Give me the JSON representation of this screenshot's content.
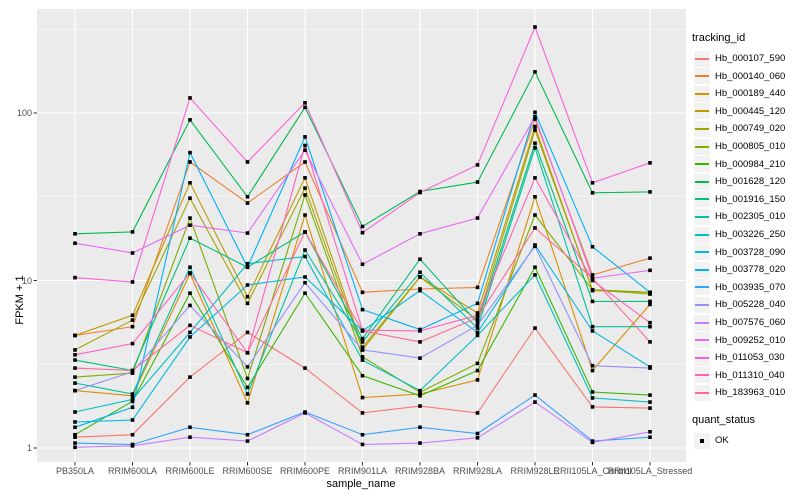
{
  "figure": {
    "axis": {
      "y_title": "FPKM + 1",
      "x_title": "sample_name",
      "y_tick_labels": [
        "1",
        "10",
        "100"
      ]
    },
    "legend": {
      "tracking_title": "tracking_id",
      "quant_title": "quant_status",
      "quant_label": "OK"
    },
    "colors": {
      "panel_background": "#ebebeb",
      "gridline": "#ffffff",
      "tick_text": "#4d4d4d",
      "point": "#000000",
      "legend_key_background": "#f2f2f2"
    }
  },
  "chart_data": {
    "type": "line",
    "title": "",
    "xlabel": "sample_name",
    "ylabel": "FPKM + 1",
    "y_scale": "log10",
    "y_ticks": [
      1,
      10,
      100
    ],
    "y_minor_ticks": [
      3.162,
      31.62,
      316.2
    ],
    "ylim": [
      0.93,
      420
    ],
    "grid": "on",
    "legend_position": "right",
    "point_marker": "small black square (quant_status = OK)",
    "categories": [
      "PB350LA",
      "RRIM600LA",
      "RRIM600LE",
      "RRIM600SE",
      "RRIM600PE",
      "RRIM901LA",
      "RRIM928BA",
      "RRIM928LA",
      "RRIM928LE",
      "RRII105LA_Control",
      "RRII105LA_Stressed"
    ],
    "series": [
      {
        "name": "Hb_000107_590",
        "color": "#F8766D",
        "values": [
          1.16,
          1.2,
          2.65,
          4.9,
          3.0,
          1.62,
          1.78,
          1.62,
          5.2,
          1.76,
          1.73
        ]
      },
      {
        "name": "Hb_000140_060",
        "color": "#EA8331",
        "values": [
          4.7,
          5.3,
          51,
          29,
          51,
          8.5,
          8.9,
          9.1,
          92,
          10.8,
          13.6
        ]
      },
      {
        "name": "Hb_000189_440",
        "color": "#D89000",
        "values": [
          2.2,
          2.05,
          11,
          1.86,
          24.6,
          2.0,
          2.1,
          2.55,
          31.6,
          2.9,
          7.2
        ]
      },
      {
        "name": "Hb_000445_120",
        "color": "#C09B00",
        "values": [
          4.7,
          6.2,
          38.3,
          8.0,
          41,
          4.0,
          10.5,
          6.4,
          83,
          8.7,
          8.5
        ]
      },
      {
        "name": "Hb_000749_020",
        "color": "#A3A500",
        "values": [
          3.85,
          5.8,
          31,
          7.3,
          35.6,
          3.85,
          10.5,
          5.8,
          79,
          8.8,
          8.3
        ]
      },
      {
        "name": "Hb_000805_010",
        "color": "#7CAE00",
        "values": [
          2.65,
          2.8,
          23.6,
          2.6,
          32.4,
          3.5,
          2.15,
          3.2,
          24.6,
          8.8,
          8.5
        ]
      },
      {
        "name": "Hb_000984_210",
        "color": "#39B600",
        "values": [
          1.2,
          1.9,
          8.4,
          2.3,
          8.4,
          2.7,
          2.05,
          2.9,
          12,
          2.16,
          2.07
        ]
      },
      {
        "name": "Hb_001628_120",
        "color": "#00BB4E",
        "values": [
          19,
          19.5,
          91,
          31.6,
          108,
          21,
          34,
          38.7,
          176,
          33.4,
          33.8
        ]
      },
      {
        "name": "Hb_001916_150",
        "color": "#00BF7D",
        "values": [
          3.35,
          2.9,
          17.9,
          12,
          19.5,
          4.5,
          13.4,
          5.6,
          66,
          7.5,
          7.5
        ]
      },
      {
        "name": "Hb_002305_010",
        "color": "#00C1A3",
        "values": [
          2.44,
          2.1,
          12,
          2.1,
          15.2,
          4.3,
          11.2,
          5.2,
          62,
          5.3,
          5.3
        ]
      },
      {
        "name": "Hb_003226_250",
        "color": "#00BFC4",
        "values": [
          1.64,
          1.95,
          4.9,
          12.6,
          13.9,
          3.35,
          2.2,
          4.7,
          10.8,
          1.99,
          1.88
        ]
      },
      {
        "name": "Hb_003728_090",
        "color": "#00BAE0",
        "values": [
          1.43,
          1.47,
          4.6,
          9.4,
          10.5,
          5.0,
          8.7,
          4.9,
          16.3,
          5.0,
          3.05
        ]
      },
      {
        "name": "Hb_003778_020",
        "color": "#00B0F6",
        "values": [
          1.33,
          1.75,
          58,
          12,
          72,
          6.7,
          5.1,
          7.3,
          101,
          15.9,
          8.5
        ]
      },
      {
        "name": "Hb_003935_070",
        "color": "#35A2FF",
        "values": [
          1.07,
          1.05,
          1.33,
          1.2,
          1.64,
          1.2,
          1.33,
          1.22,
          2.07,
          1.1,
          1.16
        ]
      },
      {
        "name": "Hb_005228_040",
        "color": "#9590FF",
        "values": [
          2.2,
          2.85,
          7.1,
          3.05,
          9.7,
          3.85,
          3.44,
          5.4,
          16,
          3.1,
          3.0
        ]
      },
      {
        "name": "Hb_007576_060",
        "color": "#C77CFF",
        "values": [
          1.01,
          1.03,
          1.16,
          1.1,
          1.62,
          1.05,
          1.07,
          1.15,
          1.88,
          1.08,
          1.25
        ]
      },
      {
        "name": "Hb_009252_010",
        "color": "#E76BF3",
        "values": [
          16.7,
          14.6,
          21.4,
          19.2,
          60,
          12.5,
          19,
          23.6,
          95,
          10.3,
          11.5
        ]
      },
      {
        "name": "Hb_011053_030",
        "color": "#FA62DB",
        "values": [
          10.4,
          9.8,
          123,
          51,
          115,
          19.3,
          33.5,
          49,
          326,
          38.3,
          50.4
        ]
      },
      {
        "name": "Hb_011310_040",
        "color": "#FF62BC",
        "values": [
          3.6,
          4.2,
          11.1,
          3.7,
          64,
          5.05,
          5.0,
          6.2,
          41,
          10,
          5.6
        ]
      },
      {
        "name": "Hb_183963_010",
        "color": "#FF6A98",
        "values": [
          3.0,
          2.9,
          5.4,
          3.7,
          19.5,
          5.0,
          4.3,
          6.0,
          20.6,
          10.3,
          4.3
        ]
      }
    ]
  }
}
